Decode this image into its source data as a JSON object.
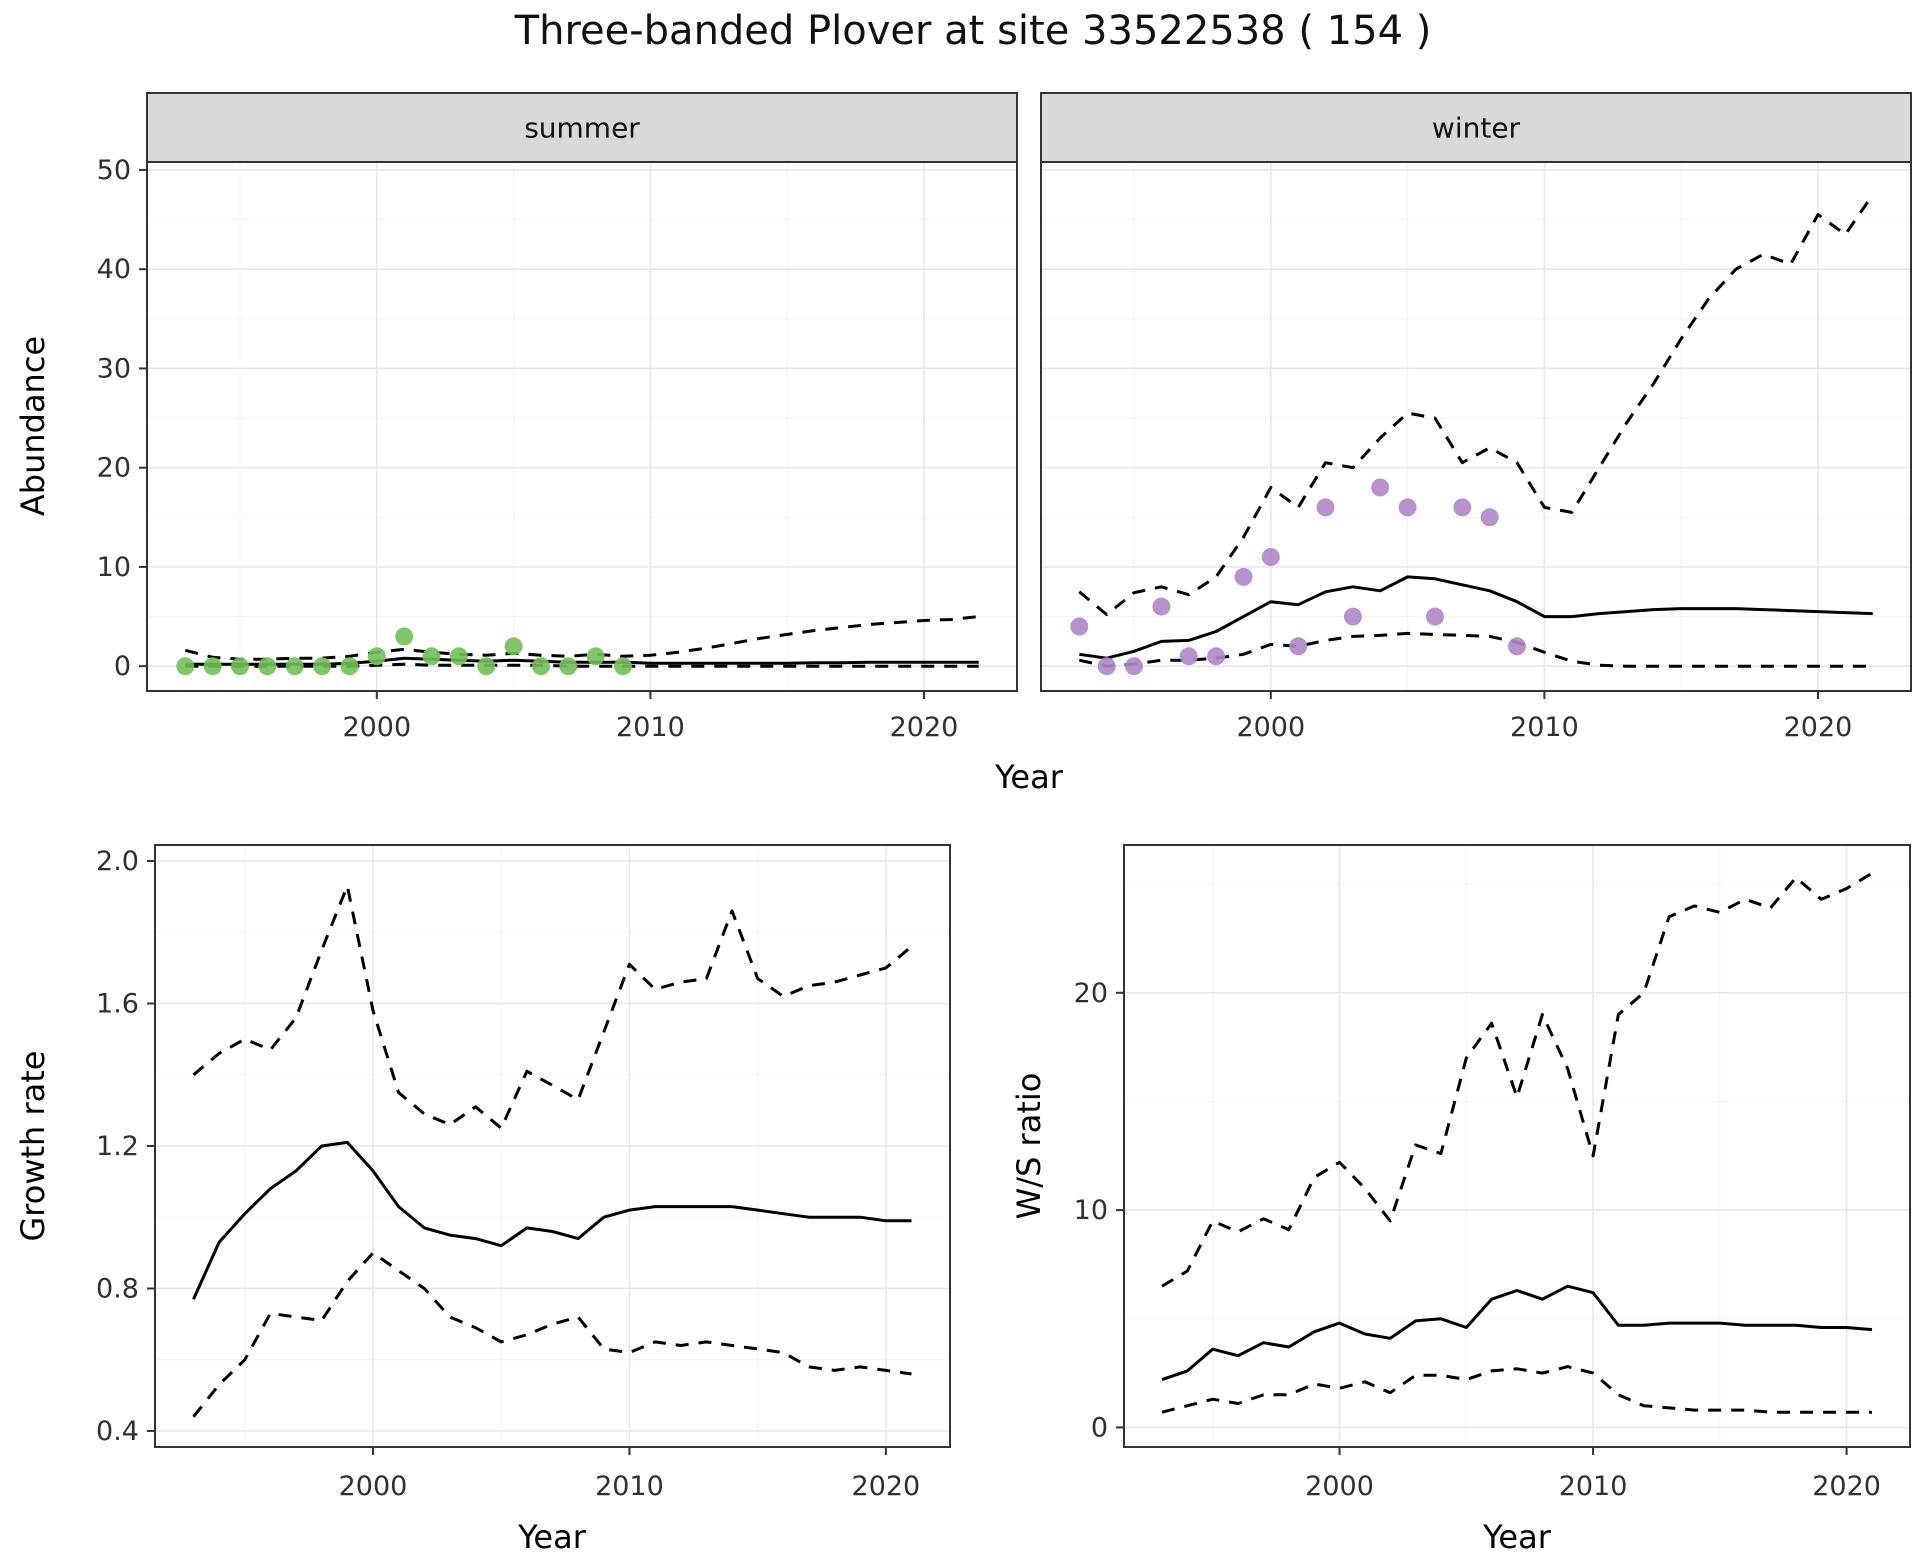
{
  "title": "Three-banded Plover at site 33522538 ( 154 )",
  "style": {
    "panel_fill": "#ffffff",
    "panel_border": "#333333",
    "strip_fill": "#d9d9d9",
    "grid_major": "#e8e8e8",
    "grid_minor": "#f3f3f3",
    "line_color": "#000000",
    "summer_point_color": "#73bf59",
    "winter_point_color": "#ae87c8"
  },
  "chart_data": [
    {
      "id": "abundance",
      "type": "line",
      "ylabel": "Abundance",
      "xlabel": "Year",
      "legend_position": "none",
      "xlim": [
        1991.6,
        2023.4
      ],
      "ylim": [
        -2.5,
        50.8
      ],
      "xticks": [
        2000,
        2010,
        2020
      ],
      "xtick_labels": [
        "2000",
        "2010",
        "2020"
      ],
      "yticks": [
        0,
        10,
        20,
        30,
        40,
        50
      ],
      "ytick_labels": [
        "0",
        "10",
        "20",
        "30",
        "40",
        "50"
      ],
      "xminor": [
        1995,
        2005,
        2015
      ],
      "yminor": [
        5,
        15,
        25,
        35,
        45
      ],
      "panels": [
        {
          "facet_label": "summer",
          "point_color": "#73bf59",
          "years": [
            1993,
            1994,
            1995,
            1996,
            1997,
            1998,
            1999,
            2000,
            2001,
            2002,
            2003,
            2004,
            2005,
            2006,
            2007,
            2008,
            2009,
            2010,
            2011,
            2012,
            2013,
            2014,
            2015,
            2016,
            2017,
            2018,
            2019,
            2020,
            2021,
            2022
          ],
          "fit": [
            0.2,
            0.2,
            0.2,
            0.2,
            0.2,
            0.2,
            0.3,
            0.5,
            0.8,
            0.7,
            0.6,
            0.5,
            0.6,
            0.5,
            0.4,
            0.4,
            0.4,
            0.3,
            0.3,
            0.3,
            0.3,
            0.3,
            0.3,
            0.35,
            0.35,
            0.4,
            0.4,
            0.4,
            0.4,
            0.4
          ],
          "upper": [
            1.6,
            0.9,
            0.7,
            0.7,
            0.8,
            0.8,
            1.0,
            1.4,
            1.7,
            1.4,
            1.2,
            1.1,
            1.3,
            1.1,
            1.0,
            1.2,
            1.0,
            1.1,
            1.4,
            1.8,
            2.3,
            2.8,
            3.2,
            3.6,
            3.9,
            4.2,
            4.4,
            4.6,
            4.7,
            5.0
          ],
          "lower": [
            0,
            0,
            0,
            0,
            0,
            0,
            0,
            0.1,
            0.2,
            0.1,
            0.1,
            0.1,
            0.1,
            0.1,
            0,
            0,
            0,
            0,
            0,
            0,
            0,
            0,
            0,
            0,
            0,
            0,
            0,
            0,
            0,
            0
          ],
          "obs_years": [
            1993,
            1994,
            1995,
            1996,
            1997,
            1998,
            1999,
            2000,
            2001,
            2002,
            2003,
            2004,
            2005,
            2006,
            2007,
            2008,
            2009
          ],
          "obs": [
            0,
            0,
            0,
            0,
            0,
            0,
            0,
            1,
            3,
            1,
            1,
            0,
            2,
            0,
            0,
            1,
            0
          ]
        },
        {
          "facet_label": "winter",
          "point_color": "#ae87c8",
          "years": [
            1993,
            1994,
            1995,
            1996,
            1997,
            1998,
            1999,
            2000,
            2001,
            2002,
            2003,
            2004,
            2005,
            2006,
            2007,
            2008,
            2009,
            2010,
            2011,
            2012,
            2013,
            2014,
            2015,
            2016,
            2017,
            2018,
            2019,
            2020,
            2021,
            2022
          ],
          "fit": [
            1.2,
            0.8,
            1.5,
            2.5,
            2.6,
            3.5,
            5.0,
            6.5,
            6.2,
            7.5,
            8.0,
            7.6,
            9.0,
            8.8,
            8.2,
            7.6,
            6.5,
            5.0,
            5.0,
            5.3,
            5.5,
            5.7,
            5.8,
            5.8,
            5.8,
            5.7,
            5.6,
            5.5,
            5.4,
            5.3
          ],
          "upper": [
            7.5,
            5.2,
            7.4,
            8.0,
            7.2,
            9.0,
            13.0,
            18.0,
            16.0,
            20.5,
            20.0,
            23.0,
            25.5,
            25.0,
            20.5,
            22.0,
            20.5,
            16.0,
            15.5,
            20.0,
            24.5,
            28.5,
            33.0,
            37.0,
            40.0,
            41.5,
            40.5,
            45.5,
            43.5,
            47.5
          ],
          "lower": [
            0.6,
            0.0,
            0.2,
            0.6,
            0.6,
            0.8,
            1.2,
            2.2,
            2.0,
            2.6,
            3.0,
            3.1,
            3.3,
            3.2,
            3.1,
            3.0,
            2.4,
            1.4,
            0.5,
            0.1,
            0,
            0,
            0,
            0,
            0,
            0,
            0,
            0,
            0,
            0
          ],
          "obs_years": [
            1993,
            1994,
            1995,
            1996,
            1997,
            1998,
            1999,
            2000,
            2001,
            2002,
            2003,
            2004,
            2005,
            2006,
            2007,
            2008,
            2009
          ],
          "obs": [
            4,
            0,
            0,
            6,
            1,
            1,
            9,
            11,
            2,
            16,
            5,
            18,
            16,
            5,
            16,
            15,
            2
          ]
        }
      ]
    },
    {
      "id": "growth-rate",
      "type": "line",
      "ylabel": "Growth rate",
      "xlabel": "Year",
      "legend_position": "none",
      "xlim": [
        1991.5,
        2022.5
      ],
      "ylim": [
        0.355,
        2.045
      ],
      "xticks": [
        2000,
        2010,
        2020
      ],
      "xtick_labels": [
        "2000",
        "2010",
        "2020"
      ],
      "yticks": [
        0.4,
        0.8,
        1.2,
        1.6,
        2.0
      ],
      "ytick_labels": [
        "0.4",
        "0.8",
        "1.2",
        "1.6",
        "2.0"
      ],
      "xminor": [
        1995,
        2005,
        2015
      ],
      "yminor": [
        0.6,
        1.0,
        1.4,
        1.8
      ],
      "panels": [
        {
          "facet_label": null,
          "years": [
            1993,
            1994,
            1995,
            1996,
            1997,
            1998,
            1999,
            2000,
            2001,
            2002,
            2003,
            2004,
            2005,
            2006,
            2007,
            2008,
            2009,
            2010,
            2011,
            2012,
            2013,
            2014,
            2015,
            2016,
            2017,
            2018,
            2019,
            2020,
            2021
          ],
          "fit": [
            0.77,
            0.93,
            1.01,
            1.08,
            1.13,
            1.2,
            1.21,
            1.13,
            1.03,
            0.97,
            0.95,
            0.94,
            0.92,
            0.97,
            0.96,
            0.94,
            1.0,
            1.02,
            1.03,
            1.03,
            1.03,
            1.03,
            1.02,
            1.01,
            1.0,
            1.0,
            1.0,
            0.99,
            0.99
          ],
          "upper": [
            1.4,
            1.46,
            1.5,
            1.47,
            1.56,
            1.75,
            1.93,
            1.58,
            1.35,
            1.29,
            1.26,
            1.31,
            1.25,
            1.41,
            1.37,
            1.33,
            1.52,
            1.71,
            1.64,
            1.66,
            1.67,
            1.86,
            1.67,
            1.62,
            1.65,
            1.66,
            1.68,
            1.7,
            1.76
          ],
          "lower": [
            0.44,
            0.53,
            0.6,
            0.73,
            0.72,
            0.71,
            0.82,
            0.9,
            0.85,
            0.8,
            0.72,
            0.69,
            0.65,
            0.67,
            0.7,
            0.72,
            0.63,
            0.62,
            0.65,
            0.64,
            0.65,
            0.64,
            0.63,
            0.62,
            0.58,
            0.57,
            0.58,
            0.57,
            0.56
          ]
        }
      ]
    },
    {
      "id": "ws-ratio",
      "type": "line",
      "ylabel": "W/S ratio",
      "xlabel": "Year",
      "legend_position": "none",
      "xlim": [
        1991.5,
        2022.5
      ],
      "ylim": [
        -0.9,
        26.8
      ],
      "xticks": [
        2000,
        2010,
        2020
      ],
      "xtick_labels": [
        "2000",
        "2010",
        "2020"
      ],
      "yticks": [
        0,
        10,
        20
      ],
      "ytick_labels": [
        "0",
        "10",
        "20"
      ],
      "xminor": [
        1995,
        2005,
        2015
      ],
      "yminor": [
        5,
        15,
        25
      ],
      "panels": [
        {
          "facet_label": null,
          "years": [
            1993,
            1994,
            1995,
            1996,
            1997,
            1998,
            1999,
            2000,
            2001,
            2002,
            2003,
            2004,
            2005,
            2006,
            2007,
            2008,
            2009,
            2010,
            2011,
            2012,
            2013,
            2014,
            2015,
            2016,
            2017,
            2018,
            2019,
            2020,
            2021
          ],
          "fit": [
            2.2,
            2.6,
            3.6,
            3.3,
            3.9,
            3.7,
            4.4,
            4.8,
            4.3,
            4.1,
            4.9,
            5.0,
            4.6,
            5.9,
            6.3,
            5.9,
            6.5,
            6.2,
            4.7,
            4.7,
            4.8,
            4.8,
            4.8,
            4.7,
            4.7,
            4.7,
            4.6,
            4.6,
            4.5
          ],
          "upper": [
            6.5,
            7.2,
            9.5,
            9.0,
            9.6,
            9.1,
            11.5,
            12.2,
            11.0,
            9.5,
            13.0,
            12.6,
            17.0,
            18.6,
            15.2,
            19.0,
            16.5,
            12.5,
            19.0,
            20.0,
            23.5,
            24.0,
            23.7,
            24.3,
            23.9,
            25.3,
            24.3,
            24.8,
            25.5
          ],
          "lower": [
            0.7,
            1.0,
            1.3,
            1.1,
            1.5,
            1.5,
            2.0,
            1.8,
            2.1,
            1.6,
            2.4,
            2.4,
            2.2,
            2.6,
            2.7,
            2.5,
            2.8,
            2.5,
            1.5,
            1.0,
            0.9,
            0.8,
            0.8,
            0.8,
            0.7,
            0.7,
            0.7,
            0.7,
            0.7
          ]
        }
      ]
    }
  ]
}
